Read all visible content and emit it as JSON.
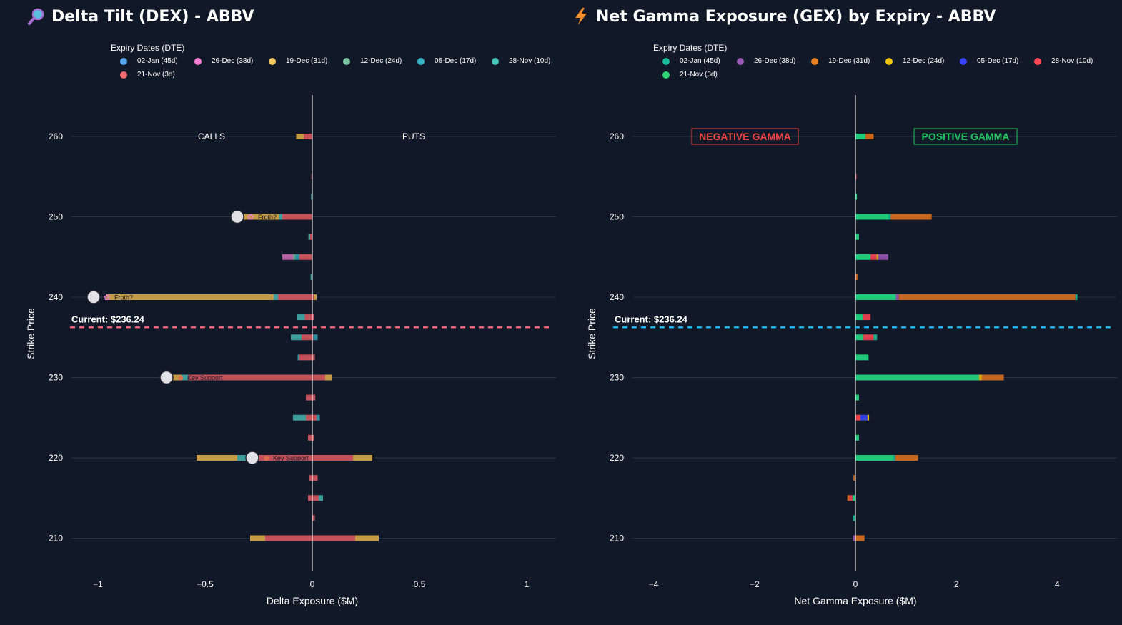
{
  "colors": {
    "background": "#111827",
    "grid": "#2b3346",
    "zero_line": "#ffffff",
    "dex_current_line": "#f06575",
    "gex_current_line": "#1cb2f0",
    "negative_gamma": "#ef4444",
    "positive_gamma": "#22c55e"
  },
  "chart_data": [
    {
      "id": "dex",
      "type": "bar",
      "orientation": "horizontal",
      "stacked": true,
      "title": "Delta Tilt (DEX) - ABBV",
      "title_icon": "magnifying-glass-icon",
      "xlabel": "Delta Exposure ($M)",
      "ylabel": "Strike Price",
      "xlim": [
        -1.13,
        1.13
      ],
      "ylim": [
        205,
        266
      ],
      "x_ticks": [
        -1,
        -0.5,
        0,
        0.5,
        1
      ],
      "x_tick_labels": [
        "−1",
        "−0.5",
        "0",
        "0.5",
        "1"
      ],
      "y_ticks": [
        210,
        220,
        230,
        240,
        250,
        260
      ],
      "y_tick_labels": [
        "210",
        "220",
        "230",
        "240",
        "250",
        "260"
      ],
      "legend_title": "Expiry Dates (DTE)",
      "legend_position": "top",
      "side_labels": [
        "CALLS",
        "PUTS"
      ],
      "current_price": 236.24,
      "current_label": "Current: $236.24",
      "series": [
        {
          "name": "02-Jan (45d)",
          "color": "#5aa6ee"
        },
        {
          "name": "26-Dec (38d)",
          "color": "#f57ed4"
        },
        {
          "name": "19-Dec (31d)",
          "color": "#f6c85f"
        },
        {
          "name": "12-Dec (24d)",
          "color": "#7cc4a0"
        },
        {
          "name": "05-Dec (17d)",
          "color": "#39b4c6"
        },
        {
          "name": "28-Nov (10d)",
          "color": "#45c4b8"
        },
        {
          "name": "21-Nov (3d)",
          "color": "#f26a6f"
        }
      ],
      "bar_colors": {
        "21-Nov (3d)": "#c4505a",
        "28-Nov (10d)": "#3e9e9c",
        "05-Dec (17d)": "#2f8c9c",
        "12-Dec (24d)": "#6a9c86",
        "19-Dec (31d)": "#c59a45",
        "26-Dec (38d)": "#b45fa2",
        "02-Jan (45d)": "#4f7fb6"
      },
      "bars": [
        {
          "strike": 260,
          "segments": [
            {
              "s": "21-Nov (3d)",
              "from": 0,
              "to": -0.04
            },
            {
              "s": "19-Dec (31d)",
              "from": -0.04,
              "to": -0.075
            }
          ]
        },
        {
          "strike": 255,
          "segments": [
            {
              "s": "21-Nov (3d)",
              "from": 0,
              "to": -0.004
            }
          ]
        },
        {
          "strike": 252.5,
          "segments": [
            {
              "s": "28-Nov (10d)",
              "from": 0,
              "to": -0.006
            }
          ]
        },
        {
          "strike": 250,
          "segments": [
            {
              "s": "21-Nov (3d)",
              "from": 0,
              "to": -0.14
            },
            {
              "s": "28-Nov (10d)",
              "from": -0.14,
              "to": -0.155
            },
            {
              "s": "19-Dec (31d)",
              "from": -0.155,
              "to": -0.33
            }
          ]
        },
        {
          "strike": 247.5,
          "segments": [
            {
              "s": "21-Nov (3d)",
              "from": 0,
              "to": -0.01
            },
            {
              "s": "28-Nov (10d)",
              "from": -0.01,
              "to": -0.018
            }
          ]
        },
        {
          "strike": 245,
          "segments": [
            {
              "s": "21-Nov (3d)",
              "from": 0,
              "to": -0.06
            },
            {
              "s": "05-Dec (17d)",
              "from": -0.06,
              "to": -0.08
            },
            {
              "s": "12-Dec (24d)",
              "from": -0.08,
              "to": -0.09
            },
            {
              "s": "26-Dec (38d)",
              "from": -0.09,
              "to": -0.14
            }
          ]
        },
        {
          "strike": 242.5,
          "segments": [
            {
              "s": "28-Nov (10d)",
              "from": 0,
              "to": -0.008
            }
          ]
        },
        {
          "strike": 240,
          "segments": [
            {
              "s": "21-Nov (3d)",
              "from": 0.01,
              "to": -0.16
            },
            {
              "s": "28-Nov (10d)",
              "from": -0.16,
              "to": -0.18
            },
            {
              "s": "19-Dec (31d)",
              "from": -0.18,
              "to": -0.96
            },
            {
              "s": "19-Dec (31d)",
              "from": 0.01,
              "to": 0.02
            }
          ]
        },
        {
          "strike": 237.5,
          "segments": [
            {
              "s": "21-Nov (3d)",
              "from": 0.008,
              "to": -0.035
            },
            {
              "s": "28-Nov (10d)",
              "from": -0.035,
              "to": -0.07
            }
          ]
        },
        {
          "strike": 235,
          "segments": [
            {
              "s": "21-Nov (3d)",
              "from": 0.005,
              "to": -0.05
            },
            {
              "s": "28-Nov (10d)",
              "from": -0.05,
              "to": -0.1
            },
            {
              "s": "05-Dec (17d)",
              "from": 0.005,
              "to": 0.025
            }
          ]
        },
        {
          "strike": 232.5,
          "segments": [
            {
              "s": "21-Nov (3d)",
              "from": 0.012,
              "to": -0.06
            },
            {
              "s": "28-Nov (10d)",
              "from": -0.06,
              "to": -0.068
            }
          ]
        },
        {
          "strike": 230,
          "segments": [
            {
              "s": "21-Nov (3d)",
              "from": 0.06,
              "to": -0.58
            },
            {
              "s": "28-Nov (10d)",
              "from": -0.58,
              "to": -0.61
            },
            {
              "s": "19-Dec (31d)",
              "from": -0.61,
              "to": -0.66
            },
            {
              "s": "19-Dec (31d)",
              "from": 0.06,
              "to": 0.09
            }
          ]
        },
        {
          "strike": 227.5,
          "segments": [
            {
              "s": "21-Nov (3d)",
              "from": 0.014,
              "to": -0.03
            }
          ]
        },
        {
          "strike": 225,
          "segments": [
            {
              "s": "21-Nov (3d)",
              "from": 0.02,
              "to": -0.03
            },
            {
              "s": "28-Nov (10d)",
              "from": -0.03,
              "to": -0.09
            },
            {
              "s": "05-Dec (17d)",
              "from": 0.02,
              "to": 0.035
            }
          ]
        },
        {
          "strike": 222.5,
          "segments": [
            {
              "s": "21-Nov (3d)",
              "from": 0.01,
              "to": -0.02
            }
          ]
        },
        {
          "strike": 220,
          "segments": [
            {
              "s": "21-Nov (3d)",
              "from": 0.19,
              "to": -0.3
            },
            {
              "s": "28-Nov (10d)",
              "from": -0.3,
              "to": -0.35
            },
            {
              "s": "19-Dec (31d)",
              "from": -0.35,
              "to": -0.54
            },
            {
              "s": "19-Dec (31d)",
              "from": 0.19,
              "to": 0.28
            }
          ]
        },
        {
          "strike": 217.5,
          "segments": [
            {
              "s": "21-Nov (3d)",
              "from": 0.025,
              "to": -0.015
            }
          ]
        },
        {
          "strike": 215,
          "segments": [
            {
              "s": "21-Nov (3d)",
              "from": 0.03,
              "to": -0.02
            },
            {
              "s": "28-Nov (10d)",
              "from": 0.03,
              "to": 0.05
            }
          ]
        },
        {
          "strike": 212.5,
          "segments": [
            {
              "s": "21-Nov (3d)",
              "from": 0.012,
              "to": 0
            }
          ]
        },
        {
          "strike": 210,
          "segments": [
            {
              "s": "21-Nov (3d)",
              "from": 0.2,
              "to": -0.22
            },
            {
              "s": "19-Dec (31d)",
              "from": -0.22,
              "to": -0.29
            },
            {
              "s": "19-Dec (31d)",
              "from": 0.2,
              "to": 0.31
            }
          ]
        }
      ],
      "markers": [
        {
          "strike": 250,
          "x": -0.35,
          "label": "Froth?",
          "emoji": "✿"
        },
        {
          "strike": 240,
          "x": -1.02,
          "label": "Froth?",
          "emoji": "✿"
        },
        {
          "strike": 230,
          "x": -0.68,
          "label": "Key Support",
          "emoji": "☻"
        },
        {
          "strike": 220,
          "x": -0.28,
          "label": "Key Support",
          "emoji": "☻"
        }
      ]
    },
    {
      "id": "gex",
      "type": "bar",
      "orientation": "horizontal",
      "stacked": true,
      "title": "Net Gamma Exposure (GEX) by Expiry - ABBV",
      "title_icon": "lightning-bolt-icon",
      "xlabel": "Net Gamma Exposure ($M)",
      "ylabel": "Strike Price",
      "xlim": [
        -4.8,
        4.8
      ],
      "ylim": [
        205,
        266
      ],
      "x_ticks": [
        -4,
        -2,
        0,
        2,
        4
      ],
      "x_tick_labels": [
        "−4",
        "−2",
        "0",
        "2",
        "4"
      ],
      "y_ticks": [
        210,
        220,
        230,
        240,
        250,
        260
      ],
      "y_tick_labels": [
        "210",
        "220",
        "230",
        "240",
        "250",
        "260"
      ],
      "legend_title": "Expiry Dates (DTE)",
      "legend_position": "top",
      "annotations": [
        "NEGATIVE GAMMA",
        "POSITIVE GAMMA"
      ],
      "current_price": 236.24,
      "current_label": "Current: $236.24",
      "series": [
        {
          "name": "02-Jan (45d)",
          "color": "#1abc9c"
        },
        {
          "name": "26-Dec (38d)",
          "color": "#9b59b6"
        },
        {
          "name": "19-Dec (31d)",
          "color": "#e67e22"
        },
        {
          "name": "12-Dec (24d)",
          "color": "#f1c40f"
        },
        {
          "name": "05-Dec (17d)",
          "color": "#3742fa"
        },
        {
          "name": "28-Nov (10d)",
          "color": "#ff4757"
        },
        {
          "name": "21-Nov (3d)",
          "color": "#2ed573"
        }
      ],
      "bar_colors": {
        "21-Nov (3d)": "#20c87a",
        "28-Nov (10d)": "#e0404e",
        "05-Dec (17d)": "#3540d8",
        "12-Dec (24d)": "#d6ad12",
        "19-Dec (31d)": "#c7671f",
        "26-Dec (38d)": "#8a4ea2",
        "02-Jan (45d)": "#1aa88a"
      },
      "bars": [
        {
          "strike": 260,
          "segments": [
            {
              "s": "21-Nov (3d)",
              "from": 0,
              "to": 0.2
            },
            {
              "s": "19-Dec (31d)",
              "from": 0.2,
              "to": 0.36
            }
          ]
        },
        {
          "strike": 255,
          "segments": [
            {
              "s": "28-Nov (10d)",
              "from": 0,
              "to": 0.02
            }
          ]
        },
        {
          "strike": 252.5,
          "segments": [
            {
              "s": "21-Nov (3d)",
              "from": 0,
              "to": 0.03
            }
          ]
        },
        {
          "strike": 250,
          "segments": [
            {
              "s": "21-Nov (3d)",
              "from": 0,
              "to": 0.66
            },
            {
              "s": "02-Jan (45d)",
              "from": 0.66,
              "to": 0.7
            },
            {
              "s": "19-Dec (31d)",
              "from": 0.7,
              "to": 1.51
            }
          ]
        },
        {
          "strike": 247.5,
          "segments": [
            {
              "s": "21-Nov (3d)",
              "from": 0,
              "to": 0.07
            }
          ]
        },
        {
          "strike": 245,
          "segments": [
            {
              "s": "21-Nov (3d)",
              "from": 0,
              "to": 0.3
            },
            {
              "s": "28-Nov (10d)",
              "from": 0.3,
              "to": 0.42
            },
            {
              "s": "12-Dec (24d)",
              "from": 0.42,
              "to": 0.45
            },
            {
              "s": "26-Dec (38d)",
              "from": 0.45,
              "to": 0.65
            }
          ]
        },
        {
          "strike": 242.5,
          "segments": [
            {
              "s": "19-Dec (31d)",
              "from": 0,
              "to": 0.04
            }
          ]
        },
        {
          "strike": 240,
          "segments": [
            {
              "s": "21-Nov (3d)",
              "from": 0,
              "to": 0.8
            },
            {
              "s": "26-Dec (38d)",
              "from": 0.8,
              "to": 0.86
            },
            {
              "s": "19-Dec (31d)",
              "from": 0.86,
              "to": 4.36
            },
            {
              "s": "02-Jan (45d)",
              "from": 4.36,
              "to": 4.4
            }
          ]
        },
        {
          "strike": 237.5,
          "segments": [
            {
              "s": "21-Nov (3d)",
              "from": 0,
              "to": 0.15
            },
            {
              "s": "28-Nov (10d)",
              "from": 0.15,
              "to": 0.3
            }
          ]
        },
        {
          "strike": 235,
          "segments": [
            {
              "s": "21-Nov (3d)",
              "from": 0,
              "to": 0.16
            },
            {
              "s": "28-Nov (10d)",
              "from": 0.16,
              "to": 0.36
            },
            {
              "s": "02-Jan (45d)",
              "from": 0.36,
              "to": 0.43
            }
          ]
        },
        {
          "strike": 232.5,
          "segments": [
            {
              "s": "21-Nov (3d)",
              "from": 0,
              "to": 0.26
            }
          ]
        },
        {
          "strike": 230,
          "segments": [
            {
              "s": "21-Nov (3d)",
              "from": 0,
              "to": 2.45
            },
            {
              "s": "12-Dec (24d)",
              "from": 2.45,
              "to": 2.5
            },
            {
              "s": "19-Dec (31d)",
              "from": 2.5,
              "to": 2.94
            }
          ]
        },
        {
          "strike": 227.5,
          "segments": [
            {
              "s": "21-Nov (3d)",
              "from": 0,
              "to": 0.07
            }
          ]
        },
        {
          "strike": 225,
          "segments": [
            {
              "s": "28-Nov (10d)",
              "from": 0,
              "to": 0.1
            },
            {
              "s": "05-Dec (17d)",
              "from": 0.1,
              "to": 0.24
            },
            {
              "s": "12-Dec (24d)",
              "from": 0.24,
              "to": 0.27
            }
          ]
        },
        {
          "strike": 222.5,
          "segments": [
            {
              "s": "21-Nov (3d)",
              "from": 0,
              "to": 0.07
            }
          ]
        },
        {
          "strike": 220,
          "segments": [
            {
              "s": "21-Nov (3d)",
              "from": 0,
              "to": 0.75
            },
            {
              "s": "02-Jan (45d)",
              "from": 0.75,
              "to": 0.79
            },
            {
              "s": "19-Dec (31d)",
              "from": 0.79,
              "to": 1.24
            }
          ]
        },
        {
          "strike": 217.5,
          "segments": [
            {
              "s": "19-Dec (31d)",
              "from": 0,
              "to": -0.04
            }
          ]
        },
        {
          "strike": 215,
          "segments": [
            {
              "s": "21-Nov (3d)",
              "from": 0,
              "to": -0.06
            },
            {
              "s": "28-Nov (10d)",
              "from": -0.06,
              "to": -0.12
            },
            {
              "s": "19-Dec (31d)",
              "from": -0.12,
              "to": -0.16
            }
          ]
        },
        {
          "strike": 212.5,
          "segments": [
            {
              "s": "02-Jan (45d)",
              "from": 0,
              "to": -0.05
            }
          ]
        },
        {
          "strike": 210,
          "segments": [
            {
              "s": "19-Dec (31d)",
              "from": 0,
              "to": 0.18
            },
            {
              "s": "26-Dec (38d)",
              "from": 0,
              "to": -0.05
            }
          ]
        }
      ]
    }
  ]
}
